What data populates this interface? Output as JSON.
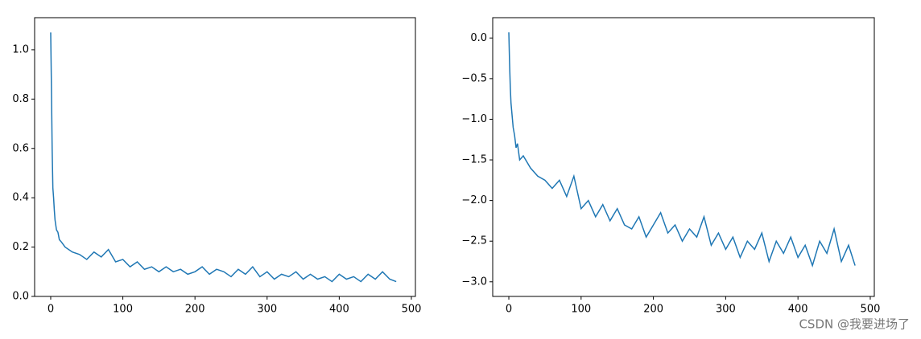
{
  "chart_data": [
    {
      "type": "line",
      "color": "#1f77b4",
      "grid": false,
      "x": [
        0,
        1,
        2,
        3,
        4,
        5,
        6,
        8,
        10,
        12,
        15,
        20,
        30,
        40,
        50,
        60,
        70,
        80,
        90,
        100,
        110,
        120,
        130,
        140,
        150,
        160,
        170,
        180,
        190,
        200,
        210,
        220,
        230,
        240,
        250,
        260,
        270,
        280,
        290,
        300,
        310,
        320,
        330,
        340,
        350,
        360,
        370,
        380,
        390,
        400,
        410,
        420,
        430,
        440,
        450,
        460,
        470,
        479
      ],
      "values": [
        1.07,
        0.85,
        0.6,
        0.44,
        0.4,
        0.35,
        0.31,
        0.27,
        0.26,
        0.23,
        0.22,
        0.2,
        0.18,
        0.17,
        0.15,
        0.18,
        0.16,
        0.19,
        0.14,
        0.15,
        0.12,
        0.14,
        0.11,
        0.12,
        0.1,
        0.12,
        0.1,
        0.11,
        0.09,
        0.1,
        0.12,
        0.09,
        0.11,
        0.1,
        0.08,
        0.11,
        0.09,
        0.12,
        0.08,
        0.1,
        0.07,
        0.09,
        0.08,
        0.1,
        0.07,
        0.09,
        0.07,
        0.08,
        0.06,
        0.09,
        0.07,
        0.08,
        0.06,
        0.09,
        0.07,
        0.1,
        0.07,
        0.06
      ],
      "xlim": [
        -22.3,
        505.6
      ],
      "ylim": [
        0,
        1.13
      ],
      "xticks": [
        0,
        100,
        200,
        300,
        400,
        500
      ],
      "yticks": [
        {
          "value": 0,
          "label": "0.0"
        },
        {
          "value": 0.2,
          "label": "0.2"
        },
        {
          "value": 0.4,
          "label": "0.4"
        },
        {
          "value": 0.6,
          "label": "0.6"
        },
        {
          "value": 0.8,
          "label": "0.8"
        },
        {
          "value": 1,
          "label": "1.0"
        }
      ]
    },
    {
      "type": "line",
      "color": "#1f77b4",
      "grid": false,
      "x": [
        0,
        1,
        2,
        3,
        4,
        5,
        6,
        8,
        10,
        12,
        15,
        20,
        30,
        40,
        50,
        60,
        70,
        80,
        90,
        100,
        110,
        120,
        130,
        140,
        150,
        160,
        170,
        180,
        190,
        200,
        210,
        220,
        230,
        240,
        250,
        260,
        270,
        280,
        290,
        300,
        310,
        320,
        330,
        340,
        350,
        360,
        370,
        380,
        390,
        400,
        410,
        420,
        430,
        440,
        450,
        460,
        470,
        479
      ],
      "values": [
        0.07,
        -0.3,
        -0.6,
        -0.8,
        -0.9,
        -1.0,
        -1.1,
        -1.2,
        -1.35,
        -1.3,
        -1.5,
        -1.45,
        -1.6,
        -1.7,
        -1.75,
        -1.85,
        -1.75,
        -1.95,
        -1.7,
        -2.1,
        -2.0,
        -2.2,
        -2.05,
        -2.25,
        -2.1,
        -2.3,
        -2.35,
        -2.2,
        -2.45,
        -2.3,
        -2.15,
        -2.4,
        -2.3,
        -2.5,
        -2.35,
        -2.45,
        -2.2,
        -2.55,
        -2.4,
        -2.6,
        -2.45,
        -2.7,
        -2.5,
        -2.6,
        -2.4,
        -2.75,
        -2.5,
        -2.65,
        -2.45,
        -2.7,
        -2.55,
        -2.8,
        -2.5,
        -2.65,
        -2.35,
        -2.75,
        -2.55,
        -2.8
      ],
      "xlim": [
        -22.3,
        505.6
      ],
      "ylim": [
        -3.18,
        0.25
      ],
      "xticks": [
        0,
        100,
        200,
        300,
        400,
        500
      ],
      "yticks": [
        {
          "value": 0,
          "label": "0.0"
        },
        {
          "value": -0.5,
          "label": "−0.5"
        },
        {
          "value": -1,
          "label": "−1.0"
        },
        {
          "value": -1.5,
          "label": "−1.5"
        },
        {
          "value": -2,
          "label": "−2.0"
        },
        {
          "value": -2.5,
          "label": "−2.5"
        },
        {
          "value": -3,
          "label": "−3.0"
        }
      ]
    }
  ],
  "watermark": "CSDN @我要进场了"
}
